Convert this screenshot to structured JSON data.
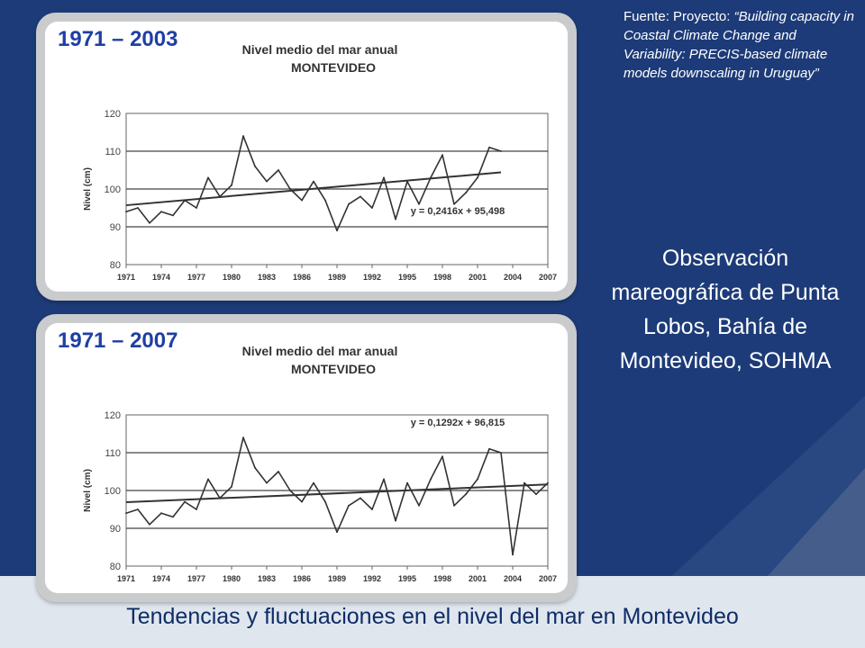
{
  "slide": {
    "caption": "Tendencias y fluctuaciones en el nivel del mar en Montevideo",
    "source_label": "Fuente: Proyecto: ",
    "source_text": "“Building capacity in Coastal Climate Change and Variability: PRECIS-based climate models downscaling in Uruguay”",
    "observation": "Observación mareográfica  de Punta Lobos, Bahía de Montevideo, SOHMA",
    "colors": {
      "background_navy": "#1d3b78",
      "title_blue": "#1f3fa3",
      "caption_navy": "#0f2c66",
      "line": "#333333"
    }
  },
  "chart_data": [
    {
      "type": "line",
      "period": "1971 – 2003",
      "title": "Nivel medio del mar anual",
      "subtitle": "MONTEVIDEO",
      "ylabel": "Nivel (cm)",
      "xlabel": "",
      "ylim": [
        80,
        120
      ],
      "yticks": [
        "120",
        "110",
        "100",
        "90",
        "80"
      ],
      "xtick_labels": [
        "1971",
        "1974",
        "1977",
        "1980",
        "1983",
        "1986",
        "1989",
        "1992",
        "1995",
        "1998",
        "2001",
        "2004",
        "2007"
      ],
      "x": [
        1971,
        1972,
        1973,
        1974,
        1975,
        1976,
        1977,
        1978,
        1979,
        1980,
        1981,
        1982,
        1983,
        1984,
        1985,
        1986,
        1987,
        1988,
        1989,
        1990,
        1991,
        1992,
        1993,
        1994,
        1995,
        1996,
        1997,
        1998,
        1999,
        2000,
        2001,
        2002,
        2003
      ],
      "series": [
        {
          "values": [
            94,
            95,
            91,
            94,
            93,
            97,
            95,
            103,
            98,
            101,
            114,
            106,
            102,
            105,
            100,
            97,
            102,
            97,
            89,
            96,
            98,
            95,
            103,
            92,
            102,
            96,
            103,
            109,
            96,
            99,
            103,
            111,
            110
          ]
        }
      ],
      "trendline": {
        "equation": "y = 0,2416x + 95,498",
        "start": 95.7,
        "end": 104.4
      },
      "grid": "horizontal"
    },
    {
      "type": "line",
      "period": "1971 – 2007",
      "title": "Nivel medio del mar anual",
      "subtitle": "MONTEVIDEO",
      "ylabel": "Nivel (cm)",
      "xlabel": "",
      "ylim": [
        80,
        120
      ],
      "yticks": [
        "120",
        "110",
        "100",
        "90",
        "80"
      ],
      "xtick_labels": [
        "1971",
        "1974",
        "1977",
        "1980",
        "1983",
        "1986",
        "1989",
        "1992",
        "1995",
        "1998",
        "2001",
        "2004",
        "2007"
      ],
      "x": [
        1971,
        1972,
        1973,
        1974,
        1975,
        1976,
        1977,
        1978,
        1979,
        1980,
        1981,
        1982,
        1983,
        1984,
        1985,
        1986,
        1987,
        1988,
        1989,
        1990,
        1991,
        1992,
        1993,
        1994,
        1995,
        1996,
        1997,
        1998,
        1999,
        2000,
        2001,
        2002,
        2003,
        2004,
        2005,
        2006,
        2007
      ],
      "series": [
        {
          "values": [
            94,
            95,
            91,
            94,
            93,
            97,
            95,
            103,
            98,
            101,
            114,
            106,
            102,
            105,
            100,
            97,
            102,
            97,
            89,
            96,
            98,
            95,
            103,
            92,
            102,
            96,
            103,
            109,
            96,
            99,
            103,
            111,
            110,
            83,
            102,
            99,
            102
          ]
        }
      ],
      "trendline": {
        "equation": "y = 0,1292x + 96,815",
        "start": 96.9,
        "end": 101.6
      },
      "grid": "horizontal"
    }
  ]
}
